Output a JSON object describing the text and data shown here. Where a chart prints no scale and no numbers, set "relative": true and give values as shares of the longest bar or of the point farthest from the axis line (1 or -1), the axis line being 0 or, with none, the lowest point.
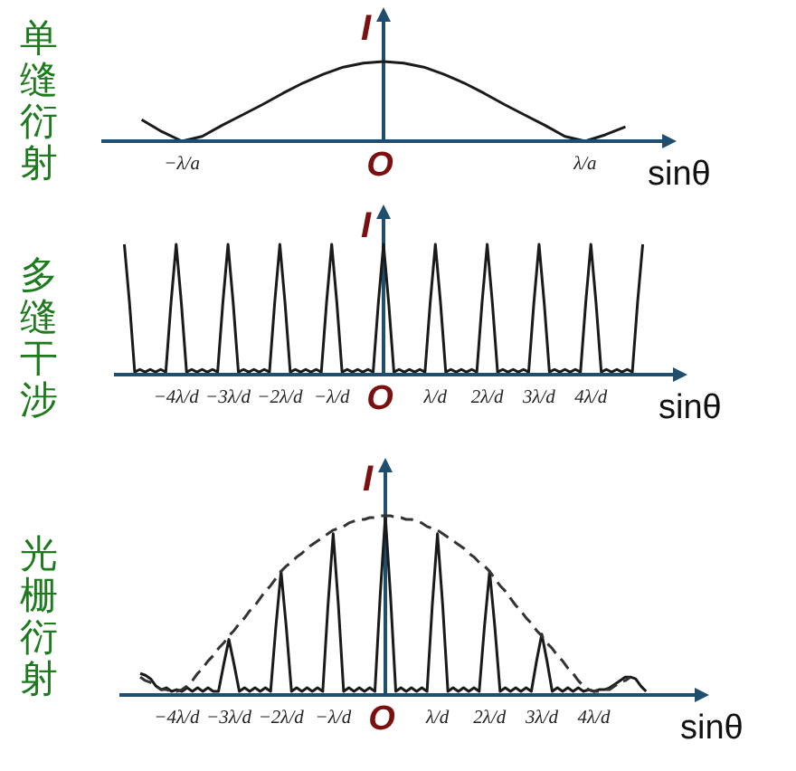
{
  "chart_data": [
    {
      "type": "line",
      "title": "单缝衍射",
      "xlabel": "sinθ",
      "ylabel": "I",
      "relative": true,
      "annotations": [
        "O"
      ],
      "categories": [
        null,
        null,
        null,
        null,
        "−λ/a",
        null,
        null,
        null,
        null,
        null,
        null,
        null,
        null,
        null,
        null,
        null,
        null,
        null,
        null,
        null,
        null,
        null,
        null,
        null,
        "λ/a",
        null,
        null,
        null,
        null
      ],
      "series": [
        {
          "color": "#1a1a1a",
          "values": [
            null,
            null,
            0.27,
            0.12,
            0,
            0.06,
            0.2,
            0.33,
            0.46,
            0.6,
            0.73,
            0.84,
            0.93,
            0.98,
            1,
            0.98,
            0.93,
            0.84,
            0.73,
            0.6,
            0.46,
            0.33,
            0.2,
            0.06,
            0,
            0.08,
            0.18,
            null,
            null
          ]
        }
      ]
    },
    {
      "type": "line",
      "title": "多缝干涉",
      "xlabel": "sinθ",
      "ylabel": "I",
      "relative": true,
      "annotations": [
        "O"
      ],
      "categories": [
        null,
        null,
        null,
        null,
        null,
        null,
        null,
        null,
        null,
        null,
        null,
        null,
        "−4λ/d",
        null,
        null,
        null,
        null,
        null,
        null,
        null,
        null,
        null,
        "−3λ/d",
        null,
        null,
        null,
        null,
        null,
        null,
        null,
        null,
        null,
        "−2λ/d",
        null,
        null,
        null,
        null,
        null,
        null,
        null,
        null,
        null,
        "−λ/d",
        null,
        null,
        null,
        null,
        null,
        null,
        null,
        null,
        null,
        null,
        null,
        null,
        null,
        null,
        null,
        null,
        null,
        null,
        null,
        "λ/d",
        null,
        null,
        null,
        null,
        null,
        null,
        null,
        null,
        null,
        "2λ/d",
        null,
        null,
        null,
        null,
        null,
        null,
        null,
        null,
        null,
        "3λ/d",
        null,
        null,
        null,
        null,
        null,
        null,
        null,
        null,
        null,
        "4λ/d",
        null,
        null,
        null,
        null,
        null,
        null,
        null,
        null,
        null,
        null,
        null,
        null
      ],
      "series": [
        {
          "color": "#1a1a1a",
          "values": [
            null,
            null,
            1,
            0.55,
            0.02,
            0.04,
            0.02,
            0.04,
            0.02,
            0.04,
            0.02,
            0.55,
            1,
            0.55,
            0.02,
            0.04,
            0.02,
            0.04,
            0.02,
            0.04,
            0.02,
            0.55,
            1,
            0.55,
            0.02,
            0.04,
            0.02,
            0.04,
            0.02,
            0.04,
            0.02,
            0.55,
            1,
            0.55,
            0.02,
            0.04,
            0.02,
            0.04,
            0.02,
            0.04,
            0.02,
            0.55,
            1,
            0.55,
            0.02,
            0.04,
            0.02,
            0.04,
            0.02,
            0.04,
            0.02,
            0.55,
            1,
            0.55,
            0.02,
            0.04,
            0.02,
            0.04,
            0.02,
            0.04,
            0.02,
            0.55,
            1,
            0.55,
            0.02,
            0.04,
            0.02,
            0.04,
            0.02,
            0.04,
            0.02,
            0.55,
            1,
            0.55,
            0.02,
            0.04,
            0.02,
            0.04,
            0.02,
            0.04,
            0.02,
            0.55,
            1,
            0.55,
            0.02,
            0.04,
            0.02,
            0.04,
            0.02,
            0.04,
            0.02,
            0.55,
            1,
            0.55,
            0.02,
            0.04,
            0.02,
            0.04,
            0.02,
            0.04,
            0.02,
            0.55,
            1,
            null,
            null
          ]
        }
      ]
    },
    {
      "type": "line",
      "title": "光栅衍射",
      "xlabel": "sinθ",
      "ylabel": "I",
      "relative": true,
      "annotations": [
        "O"
      ],
      "categories": [
        null,
        null,
        null,
        null,
        null,
        null,
        null,
        null,
        null,
        null,
        null,
        "−4λ/d",
        null,
        null,
        null,
        null,
        null,
        null,
        null,
        null,
        null,
        "−3λ/d",
        null,
        null,
        null,
        null,
        null,
        null,
        null,
        null,
        null,
        "−2λ/d",
        null,
        null,
        null,
        null,
        null,
        null,
        null,
        null,
        null,
        "−λ/d",
        null,
        null,
        null,
        null,
        null,
        null,
        null,
        null,
        null,
        null,
        null,
        null,
        null,
        null,
        null,
        null,
        null,
        null,
        null,
        "λ/d",
        null,
        null,
        null,
        null,
        null,
        null,
        null,
        null,
        null,
        "2λ/d",
        null,
        null,
        null,
        null,
        null,
        null,
        null,
        null,
        null,
        "3λ/d",
        null,
        null,
        null,
        null,
        null,
        null,
        null,
        null,
        null,
        "4λ/d",
        null,
        null,
        null,
        null,
        null,
        null,
        null,
        null,
        null,
        null,
        null
      ],
      "series": [
        {
          "color": "#1a1a1a",
          "values": [
            null,
            null,
            null,
            null,
            0.12,
            0.11,
            0.09,
            0.05,
            0.03,
            0.04,
            0.02,
            0.03,
            0.02,
            0.04,
            0.02,
            0.04,
            0.02,
            0.04,
            0.02,
            0.02,
            0.17,
            0.31,
            0.17,
            0.02,
            0.04,
            0.02,
            0.04,
            0.02,
            0.04,
            0.02,
            0.38,
            0.69,
            0.38,
            0.02,
            0.04,
            0.02,
            0.04,
            0.02,
            0.04,
            0.02,
            0.5,
            0.9,
            0.5,
            0.02,
            0.04,
            0.02,
            0.04,
            0.02,
            0.04,
            0.02,
            0.55,
            1,
            0.55,
            0.02,
            0.04,
            0.02,
            0.04,
            0.02,
            0.04,
            0.02,
            0.5,
            0.9,
            0.5,
            0.02,
            0.04,
            0.02,
            0.04,
            0.02,
            0.04,
            0.02,
            0.38,
            0.69,
            0.38,
            0.02,
            0.04,
            0.02,
            0.04,
            0.02,
            0.04,
            0.02,
            0.19,
            0.34,
            0.19,
            0.02,
            0.04,
            0.02,
            0.04,
            0.02,
            0.04,
            0.02,
            0.03,
            0.02,
            0.03,
            0.03,
            0.04,
            0.06,
            0.08,
            0.1,
            0.1,
            0.09,
            0.05,
            0.02,
            null
          ]
        },
        {
          "color": "#333333",
          "line_style": "dashed",
          "values": [
            null,
            null,
            null,
            null,
            0.1,
            0.08,
            0.07,
            0.05,
            0.03,
            0.03,
            0.02,
            0.02,
            0.03,
            0.05,
            0.08,
            0.12,
            0.15,
            0.19,
            0.22,
            0.26,
            0.29,
            0.33,
            0.36,
            0.4,
            0.43,
            0.47,
            0.5,
            0.54,
            0.58,
            0.61,
            0.65,
            0.69,
            0.72,
            0.74,
            0.77,
            0.79,
            0.82,
            0.84,
            0.86,
            0.88,
            0.9,
            0.92,
            0.93,
            0.94,
            0.96,
            0.97,
            0.98,
            0.98,
            0.99,
            0.99,
            1,
            1,
            1,
            0.99,
            0.99,
            0.98,
            0.98,
            0.97,
            0.96,
            0.94,
            0.93,
            0.92,
            0.9,
            0.88,
            0.86,
            0.84,
            0.82,
            0.79,
            0.77,
            0.74,
            0.72,
            0.69,
            0.65,
            0.61,
            0.58,
            0.54,
            0.5,
            0.47,
            0.43,
            0.4,
            0.36,
            0.33,
            0.29,
            0.26,
            0.22,
            0.19,
            0.15,
            0.12,
            0.08,
            0.05,
            0.03,
            0.02,
            0.02,
            0.03,
            0.03,
            0.05,
            0.07,
            0.08,
            0.1,
            null,
            null,
            null,
            null
          ]
        }
      ]
    }
  ]
}
